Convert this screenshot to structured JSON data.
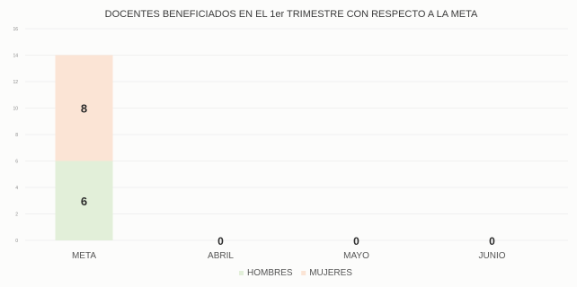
{
  "chart_data": {
    "type": "bar",
    "stacked": true,
    "title": "DOCENTES BENEFICIADOS EN EL 1er TRIMESTRE CON RESPECTO A LA META",
    "xlabel": "",
    "ylabel": "",
    "categories": [
      "META",
      "ABRIL",
      "MAYO",
      "JUNIO"
    ],
    "series": [
      {
        "name": "HOMBRES",
        "values": [
          6,
          0,
          0,
          0
        ],
        "color": "#e2efd9"
      },
      {
        "name": "MUJERES",
        "values": [
          8,
          0,
          0,
          0
        ],
        "color": "#fbe4d5"
      }
    ],
    "data_labels": [
      "8",
      "6",
      "0",
      "0",
      "0"
    ],
    "ylim": [
      0,
      16
    ],
    "yticks": [
      0,
      2,
      4,
      6,
      8,
      10,
      12,
      14,
      16
    ],
    "grid": true,
    "legend": "bottom"
  }
}
